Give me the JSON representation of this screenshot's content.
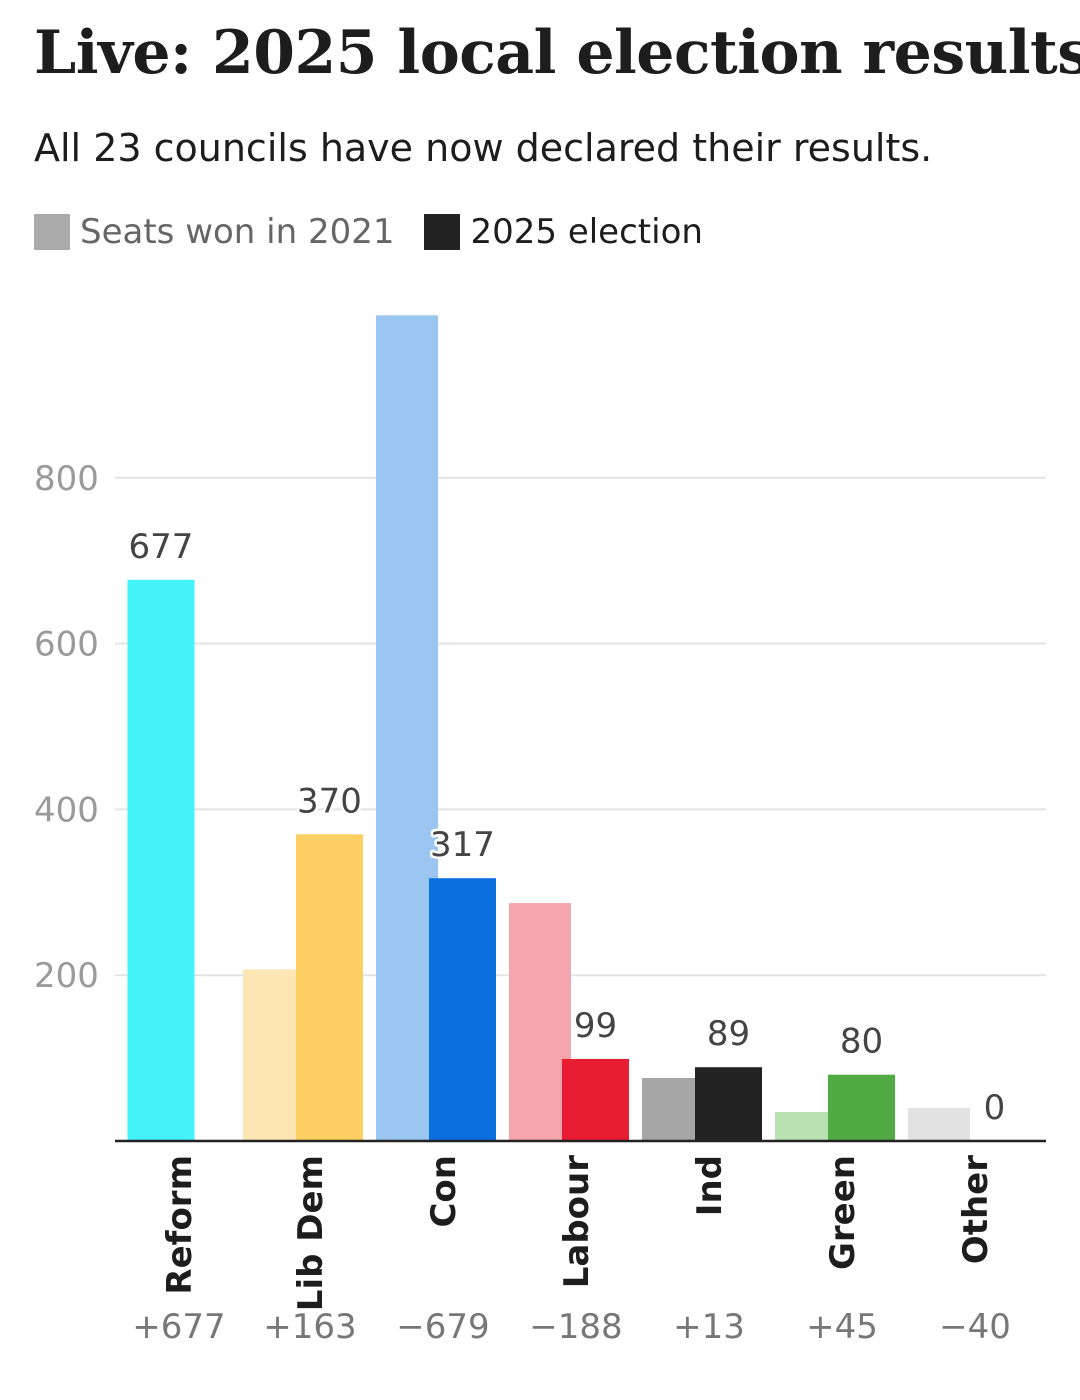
{
  "header": {
    "title": "Live: 2025 local election results",
    "subtitle": "All 23 councils have now declared their results."
  },
  "legend": {
    "prev_label": "Seats won in 2021",
    "curr_label": "2025 election",
    "prev_color": "#aaaaaa",
    "curr_color": "#222222"
  },
  "chart_data": {
    "type": "bar",
    "title": "Live: 2025 local election results",
    "subtitle": "All 23 councils have now declared their results.",
    "categories": [
      "Reform",
      "Lib Dem",
      "Con",
      "Labour",
      "Ind",
      "Green",
      "Other"
    ],
    "series": [
      {
        "name": "Seats won in 2021",
        "values": [
          0,
          207,
          996,
          287,
          76,
          35,
          40
        ],
        "colors": [
          "#45f3fb",
          "#fde6b3",
          "#9ac5f0",
          "#f5a3ac",
          "#a6a6a6",
          "#b8e0b0",
          "#e2e2e2"
        ]
      },
      {
        "name": "2025 election",
        "values": [
          677,
          370,
          317,
          99,
          89,
          80,
          0
        ],
        "colors": [
          "#45f3fb",
          "#fccf63",
          "#0a70de",
          "#e81d32",
          "#222222",
          "#52aa44",
          "#e2e2e2"
        ]
      }
    ],
    "data_labels": [
      "677",
      "370",
      "317",
      "99",
      "89",
      "80",
      "0"
    ],
    "changes": [
      "+677",
      "+163",
      "−679",
      "−188",
      "+13",
      "+45",
      "−40"
    ],
    "y_ticks": [
      "200",
      "400",
      "600",
      "800"
    ],
    "ylim": [
      0,
      1000
    ],
    "grid": true,
    "legend_position": "top-left"
  }
}
